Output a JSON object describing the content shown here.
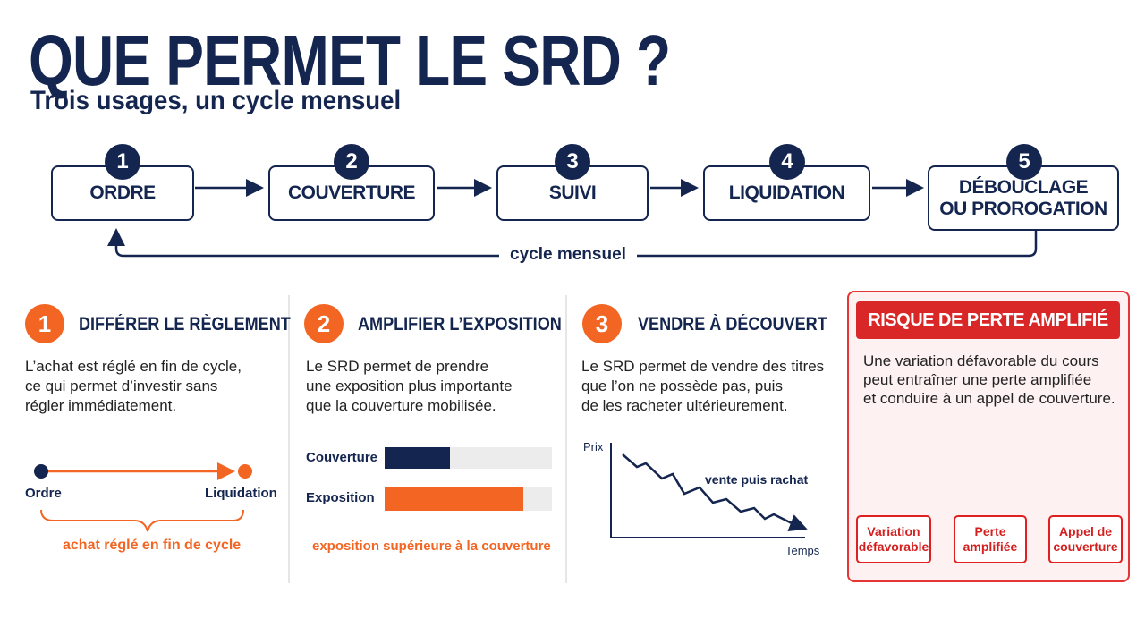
{
  "header": {
    "title": "QUE PERMET LE SRD ?",
    "subtitle": "Trois usages, un cycle mensuel"
  },
  "cycle": {
    "steps": [
      {
        "number": "1",
        "label": [
          "ORDRE"
        ]
      },
      {
        "number": "2",
        "label": [
          "COUVERTURE"
        ]
      },
      {
        "number": "3",
        "label": [
          "SUIVI"
        ]
      },
      {
        "number": "4",
        "label": [
          "LIQUIDATION"
        ]
      },
      {
        "number": "5",
        "label": [
          "DÉBOUCLAGE",
          "OU PROROGATION"
        ]
      }
    ],
    "loop_label": "cycle mensuel"
  },
  "panels": [
    {
      "number": "1",
      "title": "DIFFÉRER LE RÈGLEMENT",
      "text": [
        "L’achat est réglé en fin de cycle,",
        "ce qui permet d’investir sans",
        "régler immédiatement."
      ],
      "timeline_start": "Ordre",
      "timeline_end": "Liquidation",
      "caption": "achat réglé en fin de cycle"
    },
    {
      "number": "2",
      "title": "AMPLIFIER L’EXPOSITION",
      "text": [
        "Le SRD permet de prendre",
        "une exposition plus importante",
        "que la couverture mobilisée."
      ],
      "bar_labels": [
        "Couverture",
        "Exposition"
      ],
      "caption": "exposition supérieure à la couverture"
    },
    {
      "number": "3",
      "title": "VENDRE À DÉCOUVERT",
      "text": [
        "Le SRD permet de vendre des titres",
        "que l’on ne possède pas, puis",
        "de les racheter ultérieurement."
      ],
      "y_label": "Prix",
      "x_label": "Temps",
      "annotation": "vente puis rachat"
    }
  ],
  "risk": {
    "title": "RISQUE DE PERTE AMPLIFIÉ",
    "text": [
      "Une variation défavorable du cours",
      "peut entraîner une perte amplifiée",
      "et conduire à un appel de couverture."
    ],
    "flow": [
      [
        "Variation",
        "défavorable"
      ],
      [
        "Perte",
        "amplifiée"
      ],
      [
        "Appel de",
        "couverture"
      ]
    ]
  }
}
